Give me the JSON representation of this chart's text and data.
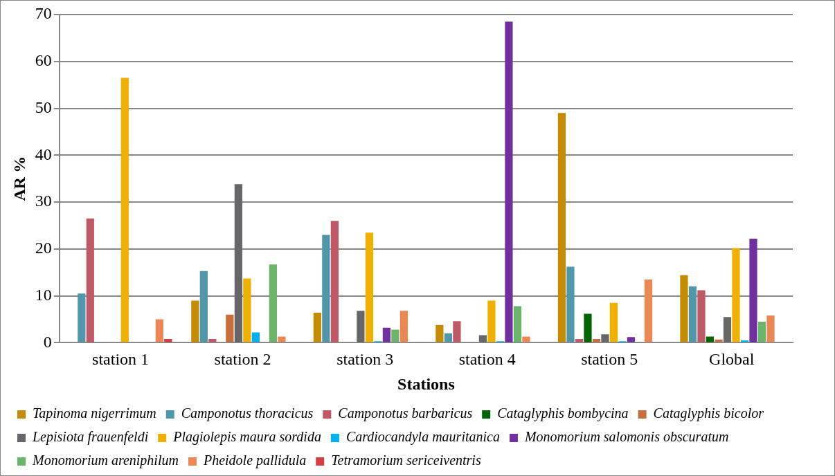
{
  "chart_data": {
    "type": "bar",
    "xlabel": "Stations",
    "ylabel": "AR %",
    "categories": [
      "station 1",
      "station 2",
      "station 3",
      "station 4",
      "station 5",
      "Global"
    ],
    "ylim": [
      0,
      70
    ],
    "yticks": [
      0,
      10,
      20,
      30,
      40,
      50,
      60,
      70
    ],
    "grid": "y",
    "legend": "bottom",
    "series": [
      {
        "name": "Tapinoma nigerrimum",
        "color": "#c68c00",
        "values": [
          0,
          9,
          6.4,
          3.8,
          49,
          14.4
        ]
      },
      {
        "name": "Camponotus thoracicus",
        "color": "#4f97ab",
        "values": [
          10.5,
          15.3,
          23,
          2,
          16.2,
          12
        ]
      },
      {
        "name": "Camponotus barbaricus",
        "color": "#c05865",
        "values": [
          26.5,
          0.8,
          26,
          4.6,
          0.8,
          11.2
        ]
      },
      {
        "name": "Cataglyphis bombycina",
        "color": "#006400",
        "values": [
          0,
          0,
          0,
          0,
          6.2,
          1.3
        ]
      },
      {
        "name": "Cataglyphis bicolor",
        "color": "#c5703c",
        "values": [
          0,
          6,
          0,
          0,
          0.8,
          0.7
        ]
      },
      {
        "name": "Lepisiota frauenfeldi",
        "color": "#66666b",
        "values": [
          0,
          33.8,
          6.8,
          1.6,
          1.8,
          5.5
        ]
      },
      {
        "name": "Plagiolepis maura sordida",
        "color": "#f0b000",
        "values": [
          56.5,
          13.7,
          23.5,
          9,
          8.5,
          20.2
        ]
      },
      {
        "name": "Cardiocandyla mauritanica",
        "color": "#00b0f0",
        "values": [
          0,
          2.2,
          0.3,
          0.3,
          0.3,
          0.5
        ]
      },
      {
        "name": "Monomorium salomonis obscuratum",
        "color": "#7030a0",
        "values": [
          0,
          0,
          3.2,
          68.5,
          1.2,
          22.2
        ]
      },
      {
        "name": "Monomorium areniphilum",
        "color": "#6bb56b",
        "values": [
          0,
          16.7,
          2.8,
          7.8,
          0,
          4.5
        ]
      },
      {
        "name": "Pheidole pallidula",
        "color": "#eb8753",
        "values": [
          5,
          1.3,
          6.8,
          1.3,
          13.5,
          5.8
        ]
      },
      {
        "name": "Tetramorium sericeiventris",
        "color": "#d04040",
        "values": [
          0.8,
          0,
          0,
          0,
          0,
          0
        ]
      }
    ]
  }
}
